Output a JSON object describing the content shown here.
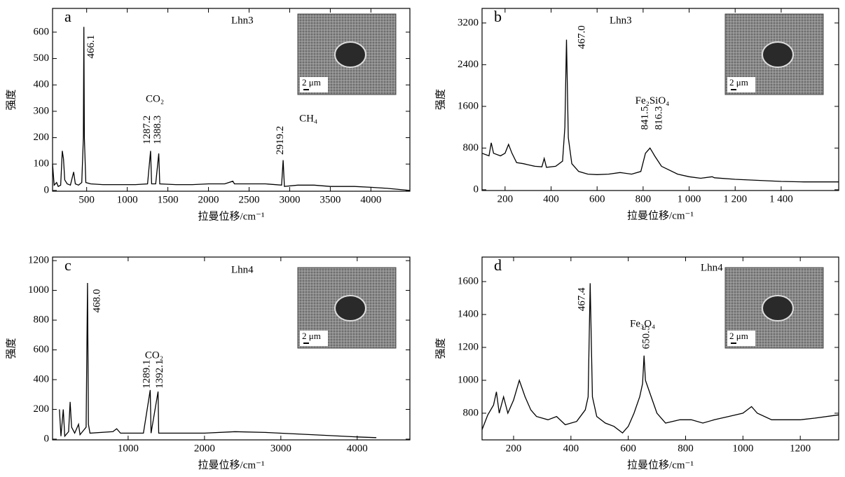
{
  "chart_data": [
    {
      "type": "line",
      "panel": "a",
      "sample": "Lhn3",
      "inset_scale": "2 μm",
      "xlabel": "拉曼位移/cm⁻¹",
      "ylabel": "强度",
      "color": "#000000",
      "xlim": [
        80,
        4480
      ],
      "ylim": [
        -3,
        690
      ],
      "xticks": [
        500,
        1000,
        1500,
        2000,
        2500,
        3000,
        3500,
        4000
      ],
      "yticks": [
        0,
        100,
        200,
        300,
        400,
        500,
        600
      ],
      "x": [
        80,
        100,
        130,
        150,
        180,
        200,
        215,
        230,
        260,
        300,
        340,
        360,
        400,
        440,
        460,
        466,
        472,
        490,
        550,
        700,
        900,
        1100,
        1250,
        1287,
        1300,
        1350,
        1388,
        1400,
        1600,
        1800,
        2000,
        2200,
        2300,
        2320,
        2500,
        2700,
        2900,
        2919,
        2935,
        3100,
        3300,
        3500,
        3800,
        4000,
        4200,
        4480
      ],
      "values": [
        100,
        20,
        30,
        15,
        20,
        150,
        120,
        40,
        25,
        20,
        70,
        25,
        20,
        30,
        200,
        620,
        200,
        30,
        25,
        22,
        22,
        22,
        25,
        150,
        25,
        25,
        140,
        25,
        22,
        22,
        25,
        25,
        35,
        25,
        25,
        25,
        20,
        115,
        15,
        20,
        20,
        15,
        15,
        12,
        8,
        0
      ],
      "annotations": [
        {
          "text": "466.1",
          "x": 560,
          "y": 500,
          "vertical": true
        },
        {
          "text": "1287.2",
          "x": 1250,
          "y": 175,
          "vertical": true
        },
        {
          "text": "1388.3",
          "x": 1380,
          "y": 175,
          "vertical": true
        },
        {
          "text": "CO₂",
          "x": 1340,
          "y": 345,
          "vertical": false
        },
        {
          "text": "2919.2",
          "x": 2890,
          "y": 135,
          "vertical": true
        },
        {
          "text": "CH₄",
          "x": 3230,
          "y": 270,
          "vertical": false
        }
      ]
    },
    {
      "type": "line",
      "panel": "b",
      "sample": "Lhn3",
      "inset_scale": "2 μm",
      "xlabel": "拉曼位移/cm⁻¹",
      "ylabel": "强度",
      "color": "#000000",
      "xlim": [
        100,
        1650
      ],
      "ylim": [
        -15,
        3480
      ],
      "xticks": [
        200,
        400,
        600,
        800,
        {
          "value": 1000,
          "label": "1 000"
        },
        {
          "value": 1200,
          "label": "1 200"
        },
        {
          "value": 1400,
          "label": "1 400"
        }
      ],
      "yticks": [
        0,
        800,
        1600,
        2400,
        3200
      ],
      "x": [
        100,
        130,
        140,
        150,
        180,
        200,
        215,
        230,
        250,
        280,
        300,
        330,
        360,
        370,
        380,
        420,
        450,
        460,
        467,
        475,
        490,
        520,
        560,
        600,
        650,
        700,
        750,
        790,
        810,
        830,
        841,
        850,
        880,
        950,
        1000,
        1050,
        1100,
        1110,
        1200,
        1300,
        1400,
        1500,
        1650
      ],
      "values": [
        700,
        650,
        900,
        700,
        650,
        700,
        870,
        700,
        520,
        500,
        480,
        450,
        440,
        600,
        430,
        450,
        550,
        1200,
        2880,
        1000,
        500,
        350,
        300,
        290,
        300,
        330,
        300,
        350,
        700,
        800,
        720,
        650,
        450,
        300,
        250,
        220,
        250,
        230,
        200,
        180,
        160,
        150,
        150
      ],
      "annotations": [
        {
          "text": "467.0",
          "x": 535,
          "y": 2700,
          "vertical": true
        },
        {
          "text": "Fe₂SiO₄",
          "x": 840,
          "y": 1700,
          "vertical": false
        },
        {
          "text": "841.5",
          "x": 810,
          "y": 1150,
          "vertical": true
        },
        {
          "text": "816.3",
          "x": 870,
          "y": 1150,
          "vertical": true
        }
      ]
    },
    {
      "type": "line",
      "panel": "c",
      "sample": "Lhn4",
      "inset_scale": "2 μm",
      "xlabel": "拉曼位移/cm⁻¹",
      "ylabel": "强度",
      "color": "#000000",
      "xlim": [
        10,
        4690
      ],
      "ylim": [
        -5,
        1224
      ],
      "xticks": [
        1000,
        2000,
        3000,
        4000
      ],
      "yticks": [
        0,
        200,
        400,
        600,
        800,
        1000,
        1200
      ],
      "x": [
        100,
        120,
        150,
        170,
        220,
        240,
        260,
        300,
        350,
        370,
        450,
        468,
        480,
        500,
        800,
        850,
        900,
        1200,
        1289,
        1300,
        1392,
        1400,
        1600,
        2000,
        2400,
        2800,
        3200,
        3600,
        4000,
        4250
      ],
      "values": [
        200,
        20,
        200,
        20,
        50,
        250,
        80,
        40,
        100,
        30,
        80,
        1050,
        100,
        40,
        50,
        70,
        40,
        40,
        330,
        40,
        320,
        40,
        40,
        40,
        50,
        45,
        35,
        25,
        15,
        10
      ],
      "annotations": [
        {
          "text": "468.0",
          "x": 600,
          "y": 850,
          "vertical": true
        },
        {
          "text": "CO₂",
          "x": 1340,
          "y": 560,
          "vertical": false
        },
        {
          "text": "1289.1",
          "x": 1250,
          "y": 340,
          "vertical": true
        },
        {
          "text": "1392.1",
          "x": 1420,
          "y": 340,
          "vertical": true
        }
      ]
    },
    {
      "type": "line",
      "panel": "d",
      "sample": "Lhn4",
      "inset_scale": "2 μm",
      "xlabel": "拉曼位移/cm⁻¹",
      "ylabel": "强度",
      "color": "#000000",
      "xlim": [
        90,
        1334
      ],
      "ylim": [
        638,
        1749
      ],
      "xticks": [
        200,
        400,
        600,
        800,
        1000,
        1200
      ],
      "yticks": [
        800,
        1000,
        1200,
        1400,
        1600
      ],
      "x": [
        90,
        110,
        130,
        140,
        150,
        165,
        180,
        200,
        220,
        240,
        260,
        280,
        320,
        350,
        380,
        420,
        450,
        460,
        467,
        475,
        490,
        520,
        550,
        580,
        600,
        620,
        640,
        650,
        655,
        660,
        680,
        700,
        730,
        780,
        820,
        860,
        900,
        950,
        1000,
        1030,
        1050,
        1100,
        1150,
        1200,
        1250,
        1334
      ],
      "values": [
        700,
        790,
        850,
        930,
        800,
        900,
        800,
        880,
        1000,
        900,
        820,
        780,
        760,
        780,
        730,
        750,
        820,
        900,
        1590,
        900,
        780,
        740,
        720,
        680,
        720,
        800,
        900,
        980,
        1150,
        1000,
        900,
        800,
        740,
        760,
        760,
        740,
        760,
        780,
        800,
        840,
        800,
        760,
        760,
        760,
        770,
        790
      ],
      "annotations": [
        {
          "text": "467.4",
          "x": 440,
          "y": 1420,
          "vertical": true
        },
        {
          "text": "Fe₃O₄",
          "x": 650,
          "y": 1340,
          "vertical": false
        },
        {
          "text": "650.5",
          "x": 665,
          "y": 1190,
          "vertical": true
        }
      ]
    }
  ]
}
